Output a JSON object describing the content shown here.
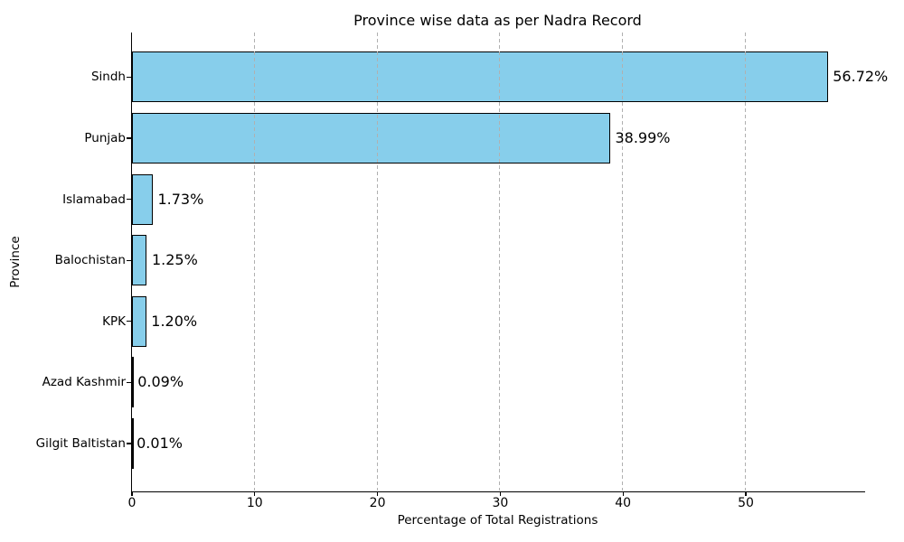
{
  "chart_data": {
    "type": "bar",
    "orientation": "horizontal",
    "title": "Province wise data as per Nadra Record",
    "xlabel": "Percentage of Total Registrations",
    "ylabel": "Province",
    "categories": [
      "Sindh",
      "Punjab",
      "Islamabad",
      "Balochistan",
      "KPK",
      "Azad Kashmir",
      "Gilgit Baltistan"
    ],
    "values": [
      56.72,
      38.99,
      1.73,
      1.25,
      1.2,
      0.09,
      0.01
    ],
    "value_labels": [
      "56.72%",
      "38.99%",
      "1.73%",
      "1.25%",
      "1.20%",
      "0.09%",
      "0.01%"
    ],
    "xticks": [
      "0",
      "10",
      "20",
      "30",
      "40",
      "50"
    ],
    "xtick_values": [
      0,
      10,
      20,
      30,
      40,
      50
    ],
    "xlim": [
      0,
      59.6
    ],
    "grid": "vertical-dashed",
    "legend": "none",
    "colors": {
      "bar_fill": "#87CEEB",
      "bar_edge": "#000000",
      "grid": "#b0b0b0",
      "text": "#000000",
      "background": "#ffffff"
    }
  }
}
